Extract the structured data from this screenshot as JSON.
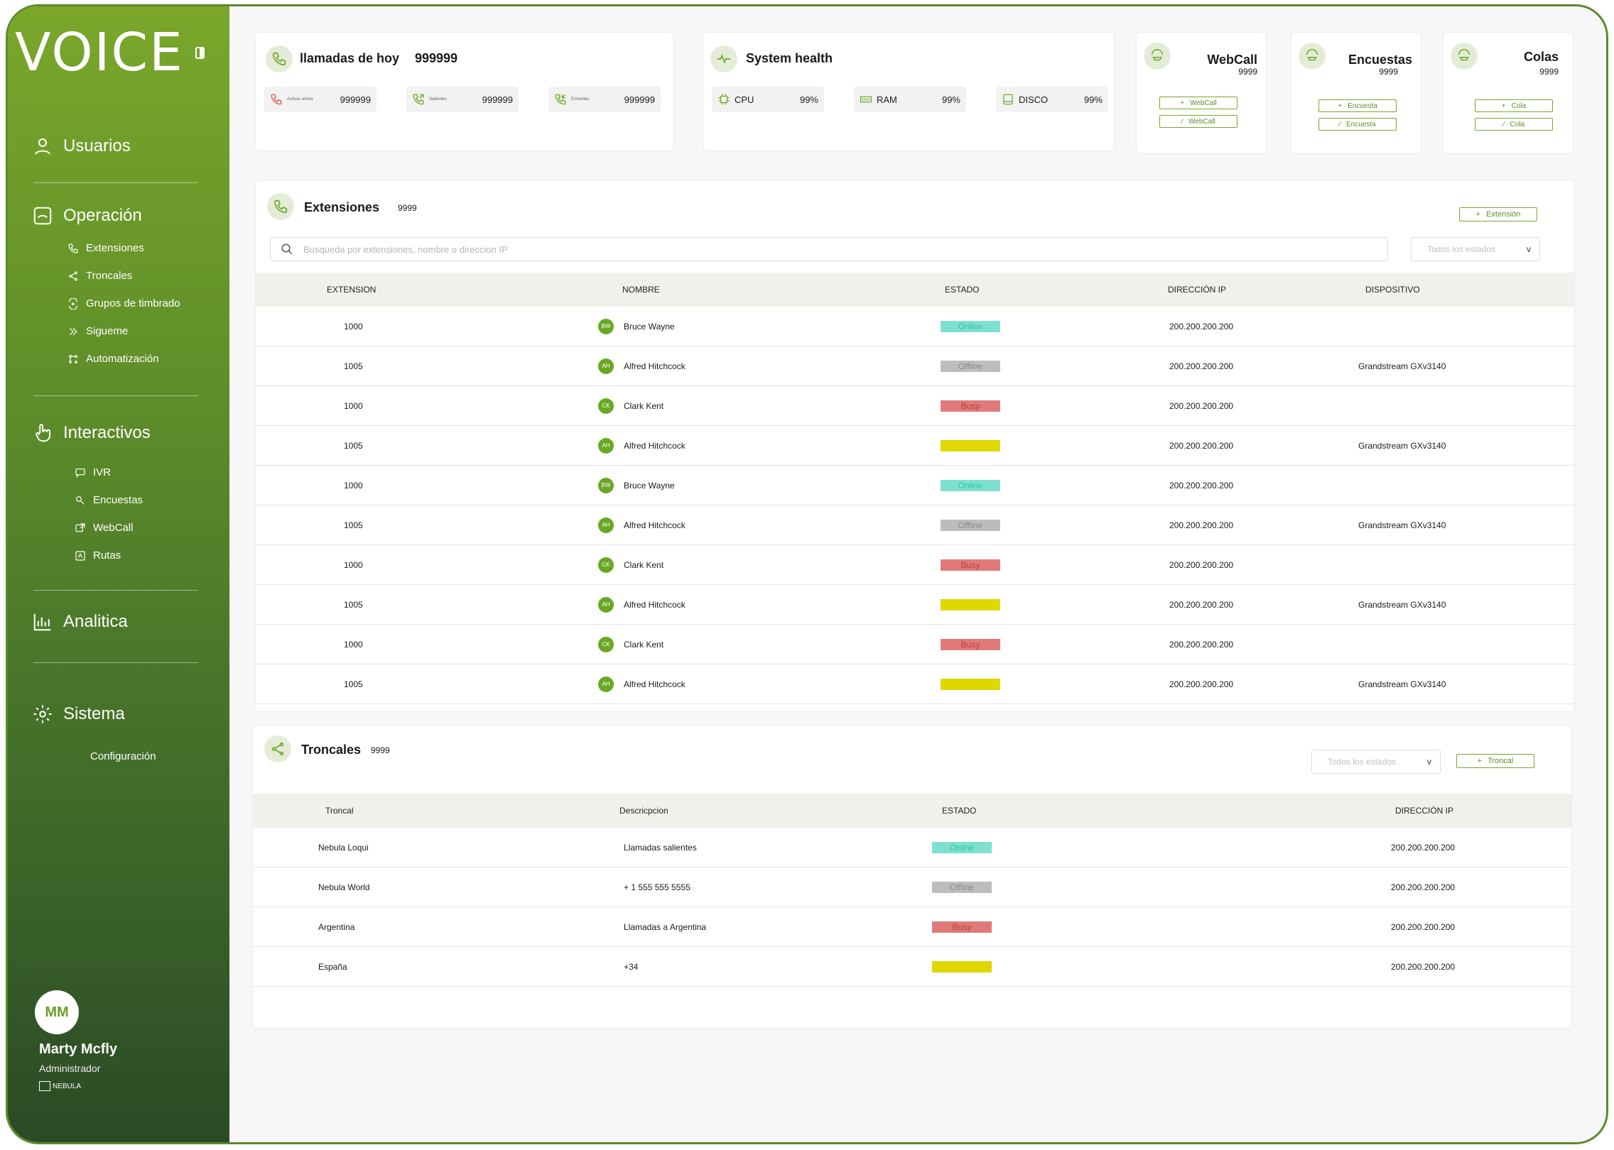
{
  "app": {
    "logo": "VOICE"
  },
  "sidebar": {
    "sections": [
      {
        "label": "Usuarios",
        "icon": "user-icon"
      },
      {
        "label": "Operación",
        "icon": "phone-box-icon"
      },
      {
        "label": "Interactivos",
        "icon": "pointer-hand-icon"
      },
      {
        "label": "Analitica",
        "icon": "bar-chart-icon"
      },
      {
        "label": "Sistema",
        "icon": "gear-icon"
      }
    ],
    "operacion_items": [
      "Extensiones",
      "Troncales",
      "Grupos de timbrado",
      "Sigueme",
      "Automatización"
    ],
    "interactivos_items": [
      "IVR",
      "Encuestas",
      "WebCall",
      "Rutas"
    ],
    "sistema_items": [
      "Configuración"
    ],
    "user": {
      "initials": "MM",
      "name": "Marty Mcfly",
      "role": "Administrador",
      "brand": "NEBULA"
    }
  },
  "calls_card": {
    "title": "llamadas de hoy",
    "total": "999999",
    "stats": [
      {
        "label": "Activas ahora",
        "value": "999999",
        "color": "#d9534f"
      },
      {
        "label": "Salientes",
        "value": "999999",
        "color": "#6aa824"
      },
      {
        "label": "Entrantes",
        "value": "999999",
        "color": "#6aa824"
      }
    ]
  },
  "health_card": {
    "title": "System health",
    "stats": [
      {
        "label": "CPU",
        "value": "99%"
      },
      {
        "label": "RAM",
        "value": "99%"
      },
      {
        "label": "DISCO",
        "value": "99%"
      }
    ]
  },
  "mini_cards": [
    {
      "title": "WebCall",
      "count": "9999",
      "add": "WebCall",
      "edit": "WebCall"
    },
    {
      "title": "Encuestas",
      "count": "9999",
      "add": "Encuesta",
      "edit": "Encuesta"
    },
    {
      "title": "Colas",
      "count": "9999",
      "add": "Cola",
      "edit": "Cola"
    }
  ],
  "extensions": {
    "title": "Extensiones",
    "count": "9999",
    "add_label": "Extensión",
    "search_placeholder": "Busqueda por extensiones, nombre o direccion IP",
    "filter": "Todos los estados",
    "columns": [
      "EXTENSION",
      "NOMBRE",
      "ESTADO",
      "DIRECCIÓN IP",
      "DISPOSITIVO"
    ],
    "rows": [
      {
        "ext": "1000",
        "initials": "BW",
        "name": "Bruce Wayne",
        "status": "Online",
        "type": "online",
        "ip": "200.200.200.200",
        "device": ""
      },
      {
        "ext": "1005",
        "initials": "AH",
        "name": "Alfred Hitchcock",
        "status": "Offline",
        "type": "offline",
        "ip": "200.200.200.200",
        "device": "Grandstream GXv3140"
      },
      {
        "ext": "1000",
        "initials": "CK",
        "name": "Clark Kent",
        "status": "Busy",
        "type": "busy",
        "ip": "200.200.200.200",
        "device": ""
      },
      {
        "ext": "1005",
        "initials": "AH",
        "name": "Alfred Hitchcock",
        "status": "",
        "type": "yellow",
        "ip": "200.200.200.200",
        "device": "Grandstream GXv3140"
      },
      {
        "ext": "1000",
        "initials": "BW",
        "name": "Bruce Wayne",
        "status": "Online",
        "type": "online",
        "ip": "200.200.200.200",
        "device": ""
      },
      {
        "ext": "1005",
        "initials": "AH",
        "name": "Alfred Hitchcock",
        "status": "Offline",
        "type": "offline",
        "ip": "200.200.200.200",
        "device": "Grandstream GXv3140"
      },
      {
        "ext": "1000",
        "initials": "CK",
        "name": "Clark Kent",
        "status": "Busy",
        "type": "busy",
        "ip": "200.200.200.200",
        "device": ""
      },
      {
        "ext": "1005",
        "initials": "AH",
        "name": "Alfred Hitchcock",
        "status": "",
        "type": "yellow",
        "ip": "200.200.200.200",
        "device": "Grandstream GXv3140"
      },
      {
        "ext": "1000",
        "initials": "CK",
        "name": "Clark Kent",
        "status": "Busy",
        "type": "busy",
        "ip": "200.200.200.200",
        "device": ""
      },
      {
        "ext": "1005",
        "initials": "AH",
        "name": "Alfred Hitchcock",
        "status": "",
        "type": "yellow",
        "ip": "200.200.200.200",
        "device": "Grandstream GXv3140"
      }
    ]
  },
  "trunks": {
    "title": "Troncales",
    "count": "9999",
    "filter": "Todos los estados",
    "add_label": "Troncal",
    "columns": [
      "Troncal",
      "Descricpcion",
      "ESTADO",
      "DIRECCIÓN IP"
    ],
    "rows": [
      {
        "name": "Nebula Loqui",
        "desc": "Llamadas salientes",
        "status": "Online",
        "type": "online",
        "ip": "200.200.200.200"
      },
      {
        "name": "Nebula World",
        "desc": "+ 1 555 555 5555",
        "status": "Offline",
        "type": "offline",
        "ip": "200.200.200.200"
      },
      {
        "name": "Argentina",
        "desc": "Llamadas a Argentina",
        "status": "Busy",
        "type": "busy",
        "ip": "200.200.200.200"
      },
      {
        "name": "España",
        "desc": "+34",
        "status": "",
        "type": "yellow",
        "ip": "200.200.200.200"
      }
    ]
  }
}
